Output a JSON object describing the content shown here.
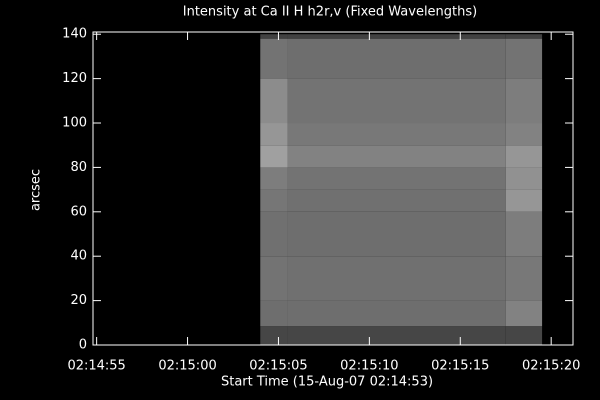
{
  "chart_data": {
    "type": "heatmap",
    "title": "Intensity at Ca II H h2r,v (Fixed Wavelengths)",
    "x_label": "Start Time (15-Aug-07 02:14:53)",
    "y_label": "arcsec",
    "xlim": [
      8094.8,
      8121.2
    ],
    "xticks": [
      {
        "value": 8095,
        "label": "02:14:55"
      },
      {
        "value": 8100,
        "label": "02:15:00"
      },
      {
        "value": 8105,
        "label": "02:15:05"
      },
      {
        "value": 8110,
        "label": "02:15:10"
      },
      {
        "value": 8115,
        "label": "02:15:15"
      },
      {
        "value": 8120,
        "label": "02:15:20"
      }
    ],
    "ylim": [
      0,
      141
    ],
    "yticks": [
      0,
      20,
      40,
      60,
      80,
      100,
      120,
      140
    ],
    "x_edges": [
      8104,
      8105.5,
      8117.5,
      8119.5
    ],
    "y_edges": [
      0,
      8.5,
      20,
      40,
      60,
      70,
      80,
      90,
      100,
      120,
      138,
      140
    ],
    "values": [
      [
        70,
        70,
        70
      ],
      [
        110,
        110,
        130
      ],
      [
        115,
        112,
        120
      ],
      [
        112,
        110,
        125
      ],
      [
        118,
        112,
        150
      ],
      [
        125,
        115,
        145
      ],
      [
        160,
        130,
        150
      ],
      [
        150,
        120,
        130
      ],
      [
        140,
        115,
        125
      ],
      [
        115,
        110,
        115
      ],
      [
        65,
        65,
        65
      ]
    ]
  }
}
